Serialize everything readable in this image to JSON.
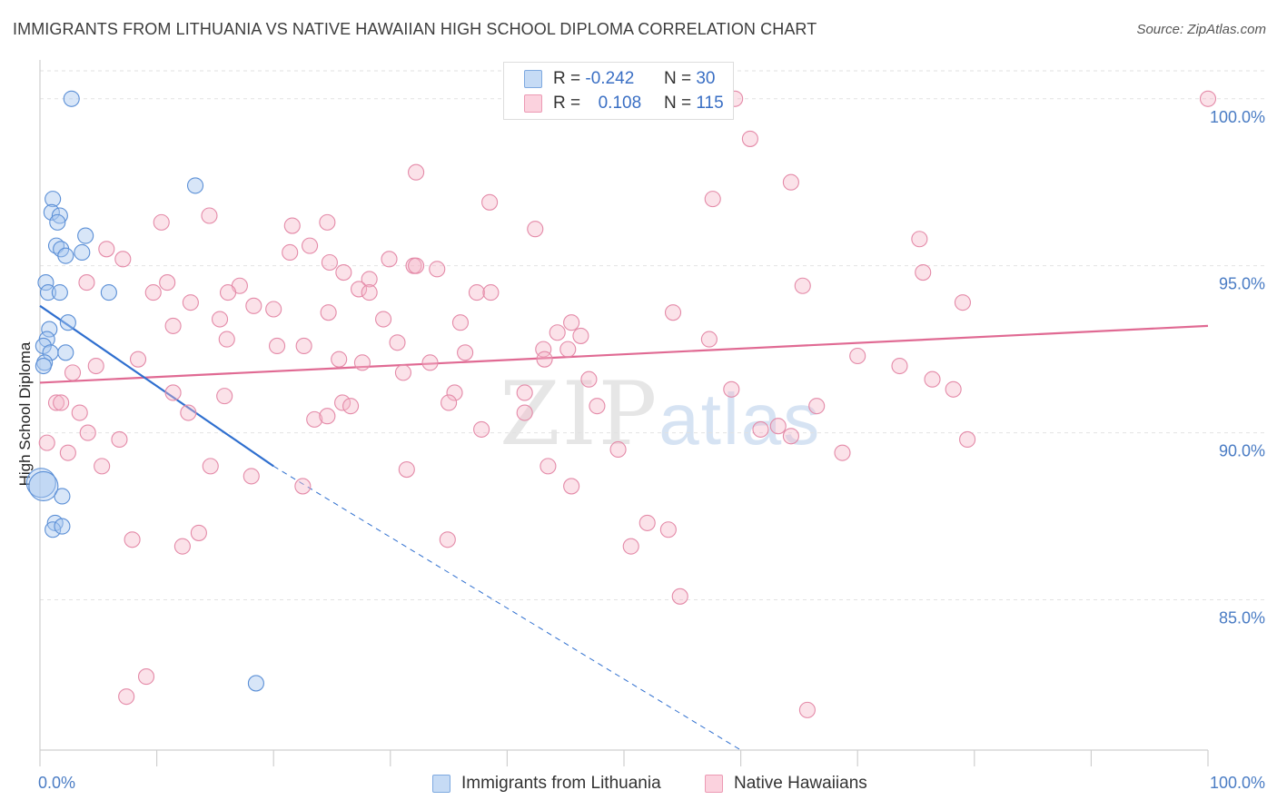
{
  "header": {
    "title": "IMMIGRANTS FROM LITHUANIA VS NATIVE HAWAIIAN HIGH SCHOOL DIPLOMA CORRELATION CHART",
    "source": "Source: ZipAtlas.com"
  },
  "watermark": {
    "zip": "ZIP",
    "atlas": "atlas"
  },
  "legend_top": {
    "rows": [
      {
        "r_label": "R =",
        "r_value": "-0.242",
        "n_label": "N =",
        "n_value": "30",
        "color": "#a9c8f0"
      },
      {
        "r_label": "R =",
        "r_value": "0.108",
        "n_label": "N =",
        "n_value": "115",
        "color": "#f5b6c9"
      }
    ]
  },
  "legend_bottom": [
    {
      "label": "Immigrants from Lithuania",
      "color": "#a9c8f0"
    },
    {
      "label": "Native Hawaiians",
      "color": "#f5b6c9"
    }
  ],
  "chart_data": {
    "type": "scatter",
    "title": "IMMIGRANTS FROM LITHUANIA VS NATIVE HAWAIIAN HIGH SCHOOL DIPLOMA CORRELATION CHART",
    "xlabel": "",
    "ylabel": "High School Diploma",
    "xlim": [
      0,
      100
    ],
    "ylim": [
      80.5,
      101.0
    ],
    "x_tick_labels": [
      "0.0%",
      "100.0%"
    ],
    "y_ticks": [
      85,
      90,
      95,
      100
    ],
    "y_tick_labels": [
      "85.0%",
      "90.0%",
      "95.0%",
      "100.0%"
    ],
    "grid": true,
    "colors": {
      "blue": "#4a86d4",
      "pink": "#e07098",
      "blue_line": "#2f6fcf",
      "pink_line": "#e06a93"
    },
    "series": [
      {
        "name": "Immigrants from Lithuania",
        "color": "#a9c8f0",
        "trend": {
          "x": [
            0,
            20
          ],
          "y": [
            93.8,
            89.0
          ],
          "dashed_to": [
            60,
            80.5
          ]
        },
        "points": [
          [
            2.7,
            100.0
          ],
          [
            13.3,
            97.4
          ],
          [
            1.1,
            97.0
          ],
          [
            1.0,
            96.6
          ],
          [
            1.7,
            96.5
          ],
          [
            1.5,
            96.3
          ],
          [
            3.9,
            95.9
          ],
          [
            1.4,
            95.6
          ],
          [
            1.8,
            95.5
          ],
          [
            3.6,
            95.4
          ],
          [
            2.2,
            95.3
          ],
          [
            0.5,
            94.5
          ],
          [
            0.7,
            94.2
          ],
          [
            1.7,
            94.2
          ],
          [
            5.9,
            94.2
          ],
          [
            2.4,
            93.3
          ],
          [
            0.8,
            93.1
          ],
          [
            0.6,
            92.8
          ],
          [
            0.3,
            92.6
          ],
          [
            0.9,
            92.4
          ],
          [
            2.2,
            92.4
          ],
          [
            0.4,
            92.1
          ],
          [
            0.3,
            92.0
          ],
          [
            0.1,
            88.5
          ],
          [
            1.9,
            88.1
          ],
          [
            1.3,
            87.3
          ],
          [
            1.1,
            87.1
          ],
          [
            1.9,
            87.2
          ],
          [
            18.5,
            82.5
          ],
          [
            0.3,
            88.4
          ]
        ]
      },
      {
        "name": "Native Hawaiians",
        "color": "#f5b6c9",
        "trend": {
          "x": [
            0,
            100
          ],
          "y": [
            91.5,
            93.2
          ]
        },
        "points": [
          [
            100.0,
            100.0
          ],
          [
            59.5,
            100.0
          ],
          [
            60.8,
            98.8
          ],
          [
            32.2,
            97.8
          ],
          [
            64.3,
            97.5
          ],
          [
            57.6,
            97.0
          ],
          [
            38.5,
            96.9
          ],
          [
            14.5,
            96.5
          ],
          [
            10.4,
            96.3
          ],
          [
            21.6,
            96.2
          ],
          [
            24.6,
            96.3
          ],
          [
            42.4,
            96.1
          ],
          [
            5.7,
            95.5
          ],
          [
            21.4,
            95.4
          ],
          [
            23.1,
            95.6
          ],
          [
            7.1,
            95.2
          ],
          [
            24.8,
            95.1
          ],
          [
            29.9,
            95.2
          ],
          [
            32.0,
            95.0
          ],
          [
            32.2,
            95.0
          ],
          [
            34.0,
            94.9
          ],
          [
            26.0,
            94.8
          ],
          [
            28.2,
            94.6
          ],
          [
            37.4,
            94.2
          ],
          [
            38.6,
            94.2
          ],
          [
            4.0,
            94.5
          ],
          [
            10.9,
            94.5
          ],
          [
            17.1,
            94.4
          ],
          [
            27.3,
            94.3
          ],
          [
            28.2,
            94.2
          ],
          [
            9.7,
            94.2
          ],
          [
            16.1,
            94.2
          ],
          [
            12.9,
            93.9
          ],
          [
            18.3,
            93.8
          ],
          [
            20.0,
            93.7
          ],
          [
            24.7,
            93.6
          ],
          [
            15.4,
            93.4
          ],
          [
            29.4,
            93.4
          ],
          [
            36.0,
            93.3
          ],
          [
            45.5,
            93.3
          ],
          [
            11.4,
            93.2
          ],
          [
            44.3,
            93.0
          ],
          [
            46.3,
            92.9
          ],
          [
            16.0,
            92.8
          ],
          [
            30.6,
            92.7
          ],
          [
            20.3,
            92.6
          ],
          [
            22.6,
            92.6
          ],
          [
            43.1,
            92.5
          ],
          [
            45.2,
            92.5
          ],
          [
            36.4,
            92.4
          ],
          [
            8.4,
            92.2
          ],
          [
            25.6,
            92.2
          ],
          [
            27.6,
            92.1
          ],
          [
            33.4,
            92.1
          ],
          [
            43.2,
            92.2
          ],
          [
            4.8,
            92.0
          ],
          [
            2.8,
            91.8
          ],
          [
            31.1,
            91.8
          ],
          [
            47.0,
            91.6
          ],
          [
            70.0,
            92.3
          ],
          [
            73.6,
            92.0
          ],
          [
            76.4,
            91.6
          ],
          [
            78.2,
            91.3
          ],
          [
            59.2,
            91.3
          ],
          [
            11.4,
            91.2
          ],
          [
            15.8,
            91.1
          ],
          [
            35.5,
            91.2
          ],
          [
            41.5,
            91.2
          ],
          [
            25.9,
            90.9
          ],
          [
            26.6,
            90.8
          ],
          [
            1.4,
            90.9
          ],
          [
            1.8,
            90.9
          ],
          [
            35.0,
            90.9
          ],
          [
            47.7,
            90.8
          ],
          [
            66.5,
            90.8
          ],
          [
            3.4,
            90.6
          ],
          [
            12.7,
            90.6
          ],
          [
            23.5,
            90.4
          ],
          [
            24.6,
            90.5
          ],
          [
            41.5,
            90.6
          ],
          [
            63.2,
            90.2
          ],
          [
            61.7,
            90.1
          ],
          [
            4.1,
            90.0
          ],
          [
            37.8,
            90.1
          ],
          [
            64.3,
            89.9
          ],
          [
            6.8,
            89.8
          ],
          [
            0.6,
            89.7
          ],
          [
            79.4,
            89.8
          ],
          [
            2.4,
            89.4
          ],
          [
            49.5,
            89.5
          ],
          [
            68.7,
            89.4
          ],
          [
            5.3,
            89.0
          ],
          [
            14.6,
            89.0
          ],
          [
            43.5,
            89.0
          ],
          [
            31.4,
            88.9
          ],
          [
            18.1,
            88.7
          ],
          [
            22.5,
            88.4
          ],
          [
            45.5,
            88.4
          ],
          [
            52.0,
            87.3
          ],
          [
            53.8,
            87.1
          ],
          [
            13.6,
            87.0
          ],
          [
            7.9,
            86.8
          ],
          [
            34.9,
            86.8
          ],
          [
            50.6,
            86.6
          ],
          [
            12.2,
            86.6
          ],
          [
            54.8,
            85.1
          ],
          [
            9.1,
            82.7
          ],
          [
            7.4,
            82.1
          ],
          [
            65.7,
            81.7
          ],
          [
            75.6,
            94.8
          ],
          [
            79.0,
            93.9
          ],
          [
            75.3,
            95.8
          ],
          [
            65.3,
            94.4
          ],
          [
            57.3,
            92.8
          ],
          [
            54.2,
            93.6
          ]
        ]
      }
    ]
  }
}
